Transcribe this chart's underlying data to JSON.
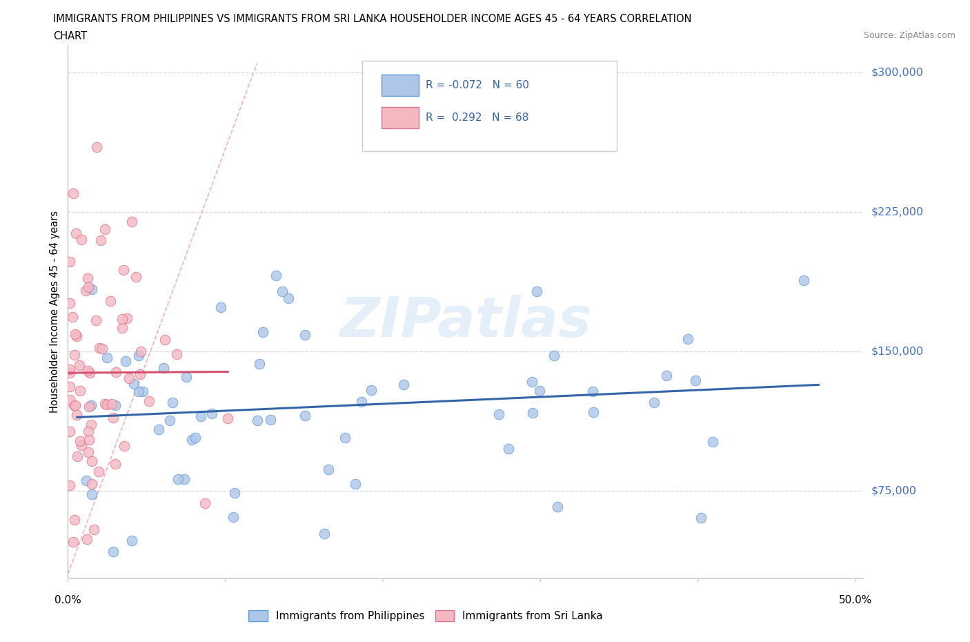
{
  "title_line1": "IMMIGRANTS FROM PHILIPPINES VS IMMIGRANTS FROM SRI LANKA HOUSEHOLDER INCOME AGES 45 - 64 YEARS CORRELATION",
  "title_line2": "CHART",
  "source": "Source: ZipAtlas.com",
  "ylabel": "Householder Income Ages 45 - 64 years",
  "xlim": [
    0.0,
    0.505
  ],
  "ylim": [
    28000,
    315000
  ],
  "yticks": [
    75000,
    150000,
    225000,
    300000
  ],
  "ytick_labels": [
    "$75,000",
    "$150,000",
    "$225,000",
    "$300,000"
  ],
  "xtick_left_label": "0.0%",
  "xtick_right_label": "50.0%",
  "philippines_color": "#aec6e8",
  "philippines_edge": "#5b9bd5",
  "srilanka_color": "#f4b8c1",
  "srilanka_edge": "#e07090",
  "trend_philippines": "#3465a8",
  "trend_srilanka": "#d45070",
  "ref_line_color": "#f0b0b8",
  "watermark": "ZIPatlas",
  "legend_r_philippines": "R = -0.072",
  "legend_n_philippines": "N = 60",
  "legend_r_srilanka": "R =  0.292",
  "legend_n_srilanka": "N = 68",
  "grid_color": "#d8d8d8",
  "grid_style": "--"
}
